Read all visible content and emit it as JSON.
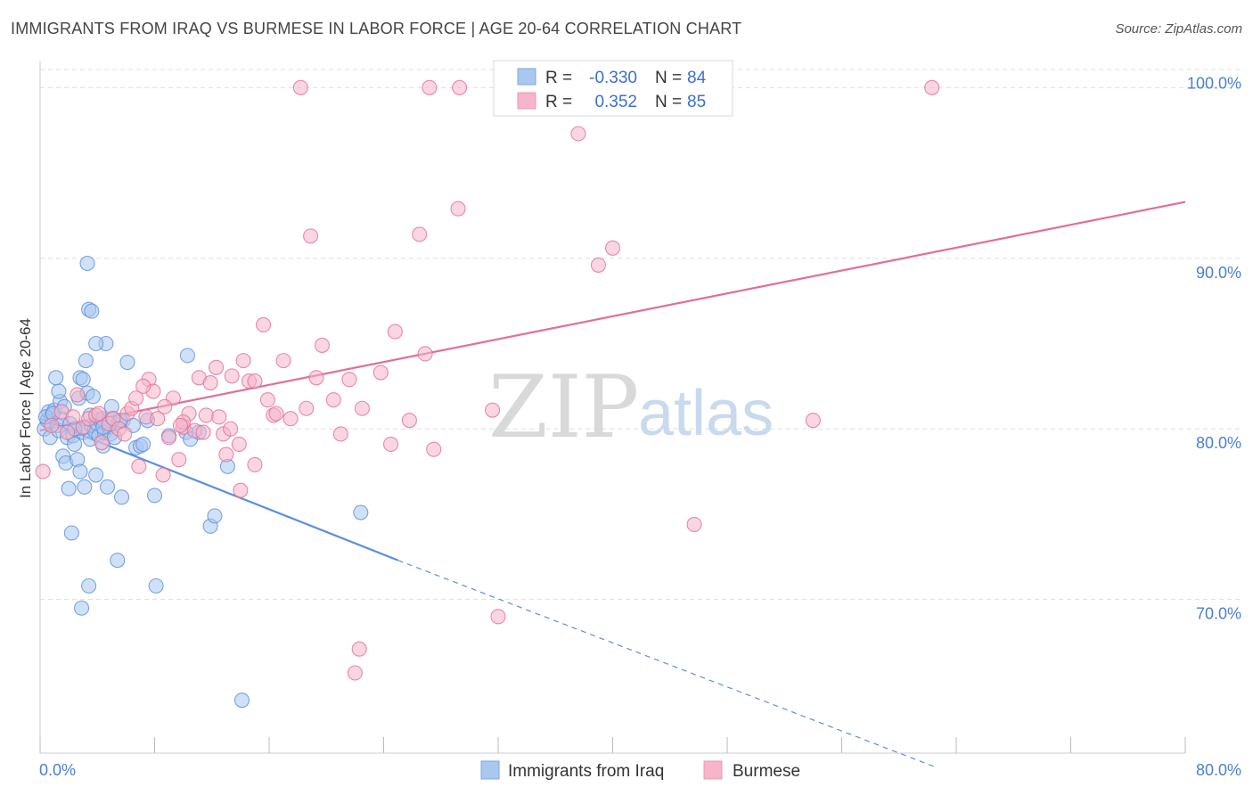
{
  "title": "IMMIGRANTS FROM IRAQ VS BURMESE IN LABOR FORCE | AGE 20-64 CORRELATION CHART",
  "source": "Source: ZipAtlas.com",
  "watermark": {
    "zip": "ZIP",
    "atlas": "atlas"
  },
  "legend": {
    "r_label": "R =",
    "n_label": "N =",
    "rows": [
      {
        "r": "-0.330",
        "n": "84",
        "color": "#a9c8f0"
      },
      {
        "r": "0.352",
        "n": "85",
        "color": "#f6b5c9"
      }
    ]
  },
  "chart_data": {
    "type": "scatter",
    "title": "IMMIGRANTS FROM IRAQ VS BURMESE IN LABOR FORCE | AGE 20-64 CORRELATION CHART",
    "xlabel": "",
    "ylabel": "In Labor Force | Age 20-64",
    "xlim": [
      0,
      80
    ],
    "ylim": [
      61,
      102
    ],
    "x_tick_labels": [
      "0.0%",
      "80.0%"
    ],
    "y_ticks": [
      70,
      80,
      90,
      100
    ],
    "y_tick_labels": [
      "70.0%",
      "80.0%",
      "90.0%",
      "100.0%"
    ],
    "grid": "horizontal dashed",
    "legend_position": "top-center",
    "series": [
      {
        "name": "Immigrants from Iraq",
        "color": "#5b8fdb",
        "fill": "#a9c8f0",
        "r": -0.33,
        "n": 84,
        "trend": {
          "x0": 0,
          "y0": 80.6,
          "x1": 25,
          "y1": 72.3,
          "dashed_to": {
            "x": 62.5,
            "y": 60.2
          }
        },
        "points": [
          [
            0.3,
            80.0
          ],
          [
            0.5,
            80.5
          ],
          [
            0.6,
            81.0
          ],
          [
            0.7,
            79.5
          ],
          [
            0.8,
            80.8
          ],
          [
            1.0,
            81.1
          ],
          [
            1.2,
            80.2
          ],
          [
            1.3,
            79.9
          ],
          [
            1.4,
            81.6
          ],
          [
            1.5,
            80.6
          ],
          [
            1.6,
            78.4
          ],
          [
            1.8,
            78.0
          ],
          [
            1.9,
            79.5
          ],
          [
            2.0,
            76.5
          ],
          [
            2.1,
            80.3
          ],
          [
            2.2,
            73.9
          ],
          [
            2.3,
            79.6
          ],
          [
            2.4,
            79.1
          ],
          [
            2.5,
            80.0
          ],
          [
            2.6,
            78.2
          ],
          [
            2.7,
            81.8
          ],
          [
            2.8,
            77.5
          ],
          [
            2.9,
            69.5
          ],
          [
            3.0,
            79.8
          ],
          [
            3.1,
            76.6
          ],
          [
            3.2,
            80.1
          ],
          [
            3.3,
            82.1
          ],
          [
            3.4,
            70.8
          ],
          [
            3.5,
            79.4
          ],
          [
            3.6,
            80.2
          ],
          [
            3.7,
            81.9
          ],
          [
            3.8,
            79.9
          ],
          [
            3.9,
            77.3
          ],
          [
            4.0,
            80.3
          ],
          [
            4.1,
            79.6
          ],
          [
            4.2,
            80.5
          ],
          [
            4.3,
            80.6
          ],
          [
            4.4,
            79.0
          ],
          [
            4.5,
            79.8
          ],
          [
            4.6,
            85.0
          ],
          [
            4.7,
            76.6
          ],
          [
            4.8,
            80.1
          ],
          [
            4.9,
            79.7
          ],
          [
            5.0,
            81.3
          ],
          [
            5.1,
            80.6
          ],
          [
            5.2,
            79.5
          ],
          [
            5.4,
            72.3
          ],
          [
            5.5,
            80.4
          ],
          [
            5.7,
            76.0
          ],
          [
            5.8,
            80.5
          ],
          [
            6.1,
            83.9
          ],
          [
            6.5,
            80.2
          ],
          [
            6.7,
            78.9
          ],
          [
            7.0,
            79.0
          ],
          [
            7.2,
            79.1
          ],
          [
            7.5,
            80.5
          ],
          [
            8.0,
            76.1
          ],
          [
            8.1,
            70.8
          ],
          [
            9.0,
            79.6
          ],
          [
            10.2,
            79.8
          ],
          [
            10.3,
            84.3
          ],
          [
            10.5,
            79.4
          ],
          [
            11.1,
            79.8
          ],
          [
            11.9,
            74.3
          ],
          [
            12.2,
            74.9
          ],
          [
            13.1,
            77.8
          ],
          [
            14.1,
            64.1
          ],
          [
            22.4,
            75.1
          ],
          [
            3.3,
            89.7
          ],
          [
            3.4,
            87.0
          ],
          [
            3.6,
            86.9
          ],
          [
            3.9,
            85.0
          ],
          [
            3.2,
            84.0
          ],
          [
            2.8,
            83.0
          ],
          [
            3.0,
            82.9
          ],
          [
            1.3,
            82.2
          ],
          [
            1.1,
            83.0
          ],
          [
            0.4,
            80.7
          ],
          [
            0.9,
            80.9
          ],
          [
            1.7,
            81.3
          ],
          [
            2.4,
            80.0
          ],
          [
            5.6,
            80.5
          ],
          [
            4.4,
            80.1
          ],
          [
            3.5,
            80.8
          ]
        ]
      },
      {
        "name": "Burmese",
        "color": "#e26f96",
        "fill": "#f6b5c9",
        "r": 0.352,
        "n": 85,
        "trend": {
          "x0": 0,
          "y0": 79.9,
          "x1": 80,
          "y1": 93.3
        },
        "points": [
          [
            0.2,
            77.5
          ],
          [
            0.8,
            80.2
          ],
          [
            1.5,
            81.0
          ],
          [
            1.9,
            79.8
          ],
          [
            2.3,
            80.7
          ],
          [
            2.6,
            82.0
          ],
          [
            3.0,
            80.1
          ],
          [
            3.4,
            80.6
          ],
          [
            3.9,
            80.8
          ],
          [
            4.3,
            79.2
          ],
          [
            4.8,
            80.3
          ],
          [
            5.1,
            80.6
          ],
          [
            5.5,
            80.0
          ],
          [
            5.9,
            79.7
          ],
          [
            6.1,
            80.9
          ],
          [
            6.4,
            81.2
          ],
          [
            6.9,
            77.8
          ],
          [
            7.4,
            80.7
          ],
          [
            7.6,
            82.9
          ],
          [
            7.9,
            82.2
          ],
          [
            8.2,
            80.6
          ],
          [
            8.6,
            77.3
          ],
          [
            9.0,
            79.5
          ],
          [
            9.3,
            81.8
          ],
          [
            9.7,
            78.2
          ],
          [
            10.0,
            80.1
          ],
          [
            10.4,
            80.9
          ],
          [
            10.8,
            79.9
          ],
          [
            11.1,
            83.0
          ],
          [
            11.4,
            79.8
          ],
          [
            11.9,
            82.7
          ],
          [
            12.3,
            83.6
          ],
          [
            12.8,
            79.7
          ],
          [
            13.0,
            78.5
          ],
          [
            13.4,
            83.1
          ],
          [
            13.9,
            79.1
          ],
          [
            14.2,
            84.0
          ],
          [
            14.6,
            82.8
          ],
          [
            15.0,
            77.9
          ],
          [
            15.6,
            86.1
          ],
          [
            15.9,
            81.7
          ],
          [
            16.3,
            80.8
          ],
          [
            17.0,
            84.0
          ],
          [
            17.5,
            80.6
          ],
          [
            18.6,
            81.2
          ],
          [
            18.9,
            91.3
          ],
          [
            19.7,
            84.9
          ],
          [
            20.5,
            81.7
          ],
          [
            21.0,
            79.7
          ],
          [
            21.6,
            82.9
          ],
          [
            22.5,
            81.2
          ],
          [
            23.8,
            83.3
          ],
          [
            24.5,
            79.1
          ],
          [
            24.8,
            85.7
          ],
          [
            25.8,
            80.5
          ],
          [
            26.5,
            91.4
          ],
          [
            26.9,
            84.4
          ],
          [
            27.5,
            78.8
          ],
          [
            29.2,
            92.9
          ],
          [
            31.6,
            81.1
          ],
          [
            32.0,
            69.0
          ],
          [
            37.6,
            97.3
          ],
          [
            39.0,
            89.6
          ],
          [
            40.0,
            90.6
          ],
          [
            45.7,
            74.4
          ],
          [
            54.0,
            80.5
          ],
          [
            18.2,
            100.0
          ],
          [
            27.2,
            100.0
          ],
          [
            29.3,
            100.0
          ],
          [
            62.3,
            100.0
          ],
          [
            22.3,
            67.1
          ],
          [
            22.0,
            65.7
          ],
          [
            13.3,
            80.0
          ],
          [
            11.6,
            80.8
          ],
          [
            14.0,
            76.4
          ],
          [
            10.0,
            80.4
          ],
          [
            8.7,
            81.3
          ],
          [
            16.5,
            80.9
          ],
          [
            7.2,
            82.5
          ],
          [
            12.5,
            80.7
          ],
          [
            15.0,
            82.8
          ],
          [
            19.3,
            83.0
          ],
          [
            9.8,
            80.2
          ],
          [
            6.7,
            81.8
          ],
          [
            4.1,
            80.9
          ]
        ]
      }
    ]
  }
}
